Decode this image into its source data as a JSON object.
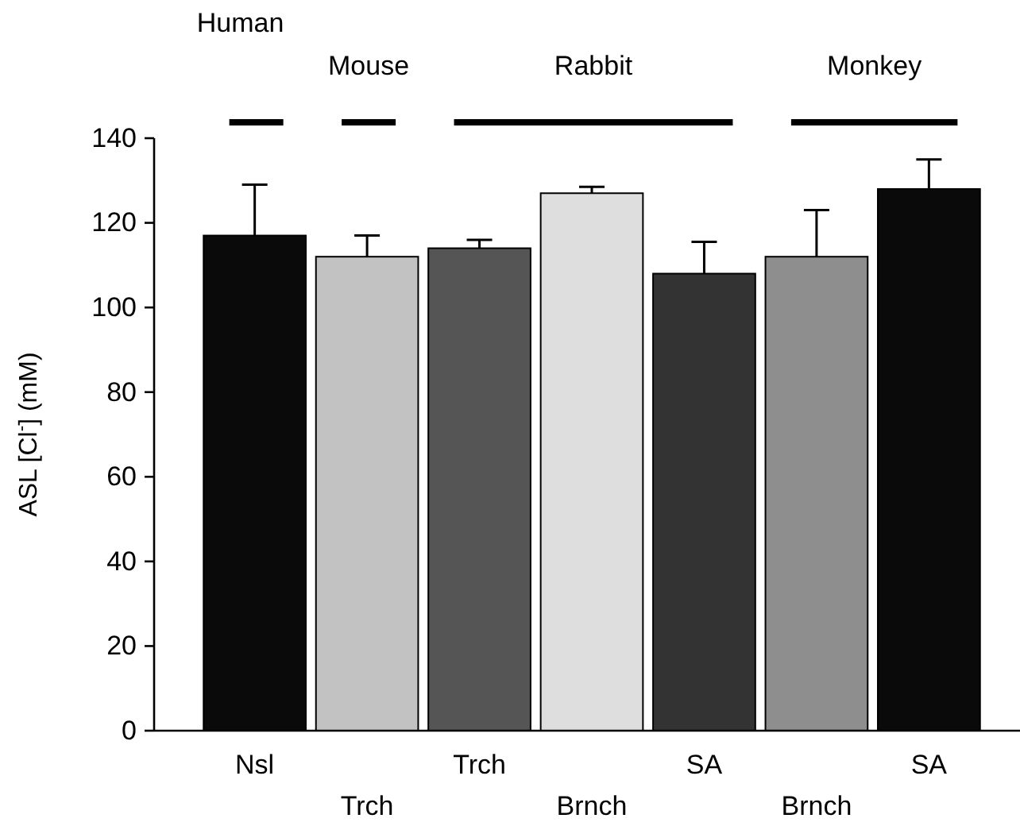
{
  "chart_data": {
    "type": "bar",
    "ylabel": "ASL [Cl$^{-}$] (mM)",
    "categories": [
      "Nsl",
      "Trch",
      "Trch",
      "Brnch",
      "SA",
      "Brnch",
      "SA"
    ],
    "values": [
      117,
      112,
      114,
      127,
      108,
      112,
      128
    ],
    "errors": [
      [
        117,
        129
      ],
      [
        112,
        117
      ],
      [
        114,
        116
      ],
      [
        127,
        128.5
      ],
      [
        108,
        115.5
      ],
      [
        112,
        123
      ],
      [
        128,
        135
      ]
    ],
    "colors": [
      "#0a0a0a",
      "#c2c2c2",
      "#555555",
      "#dedede",
      "#333333",
      "#8e8e8e",
      "#0a0a0a"
    ],
    "ylim": [
      0,
      140
    ],
    "yticks": [
      0,
      20,
      40,
      60,
      80,
      100,
      120,
      140
    ],
    "annotations": [
      "Human",
      "Mouse",
      "Rabbit",
      "Monkey"
    ],
    "grid": false
  }
}
